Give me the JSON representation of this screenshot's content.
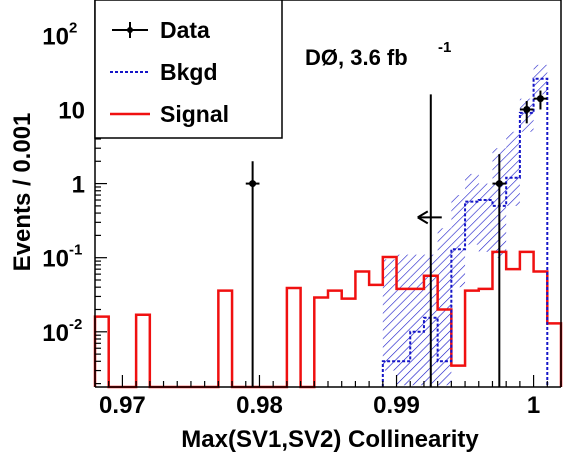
{
  "chart_data": {
    "type": "histogram",
    "xlabel": "Max(SV1,SV2) Collinearity",
    "ylabel": "Events / 0.001",
    "xlim": [
      0.968,
      1.002
    ],
    "ylim": [
      0.0018,
      300
    ],
    "y_scale": "log",
    "bin_width": 0.001,
    "x_ticks": [
      {
        "value": 0.97,
        "label": "0.97"
      },
      {
        "value": 0.98,
        "label": "0.98"
      },
      {
        "value": 0.99,
        "label": "0.99"
      },
      {
        "value": 1.0,
        "label": "1"
      }
    ],
    "y_ticks": [
      {
        "value": 0.01,
        "base": "10",
        "exp": "-2"
      },
      {
        "value": 0.1,
        "base": "10",
        "exp": "-1"
      },
      {
        "value": 1,
        "base": "1",
        "exp": ""
      },
      {
        "value": 10,
        "base": "10",
        "exp": ""
      },
      {
        "value": 100,
        "base": "10",
        "exp": "2"
      }
    ],
    "annotation": {
      "main": "DØ, 3.6 fb",
      "sup": "-1"
    },
    "cut_value": 0.9933,
    "legend": {
      "placement": "top-left",
      "entries": [
        {
          "label": "Data",
          "key": "data"
        },
        {
          "label": "Bkgd",
          "key": "bkgd"
        },
        {
          "label": "Signal",
          "key": "signal"
        }
      ]
    },
    "colors": {
      "data": "#000000",
      "bkgd": "#1515c8",
      "signal": "#f01010",
      "hatch": "#1515c8"
    },
    "signal": [
      {
        "x": 0.968,
        "y": 0.016
      },
      {
        "x": 0.969,
        "y": 0.0001
      },
      {
        "x": 0.97,
        "y": 0.0001
      },
      {
        "x": 0.971,
        "y": 0.017
      },
      {
        "x": 0.972,
        "y": 0.0001
      },
      {
        "x": 0.973,
        "y": 0.0001
      },
      {
        "x": 0.974,
        "y": 0.0001
      },
      {
        "x": 0.975,
        "y": 0.0001
      },
      {
        "x": 0.976,
        "y": 0.0001
      },
      {
        "x": 0.977,
        "y": 0.036
      },
      {
        "x": 0.978,
        "y": 0.0001
      },
      {
        "x": 0.979,
        "y": 0.0001
      },
      {
        "x": 0.98,
        "y": 0.0001
      },
      {
        "x": 0.981,
        "y": 0.0001
      },
      {
        "x": 0.982,
        "y": 0.039
      },
      {
        "x": 0.983,
        "y": 0.0001
      },
      {
        "x": 0.984,
        "y": 0.029
      },
      {
        "x": 0.985,
        "y": 0.036
      },
      {
        "x": 0.986,
        "y": 0.028
      },
      {
        "x": 0.987,
        "y": 0.065
      },
      {
        "x": 0.988,
        "y": 0.043
      },
      {
        "x": 0.989,
        "y": 0.102
      },
      {
        "x": 0.99,
        "y": 0.038
      },
      {
        "x": 0.991,
        "y": 0.038
      },
      {
        "x": 0.992,
        "y": 0.057
      },
      {
        "x": 0.993,
        "y": 0.02
      },
      {
        "x": 0.994,
        "y": 0.0035
      },
      {
        "x": 0.995,
        "y": 0.036
      },
      {
        "x": 0.996,
        "y": 0.038
      },
      {
        "x": 0.997,
        "y": 0.12
      },
      {
        "x": 0.998,
        "y": 0.07
      },
      {
        "x": 0.999,
        "y": 0.12
      },
      {
        "x": 1.0,
        "y": 0.065
      },
      {
        "x": 1.001,
        "y": 0.013
      }
    ],
    "bkgd": [
      {
        "x": 0.989,
        "y": 0.004
      },
      {
        "x": 0.99,
        "y": 0.004
      },
      {
        "x": 0.991,
        "y": 0.01
      },
      {
        "x": 0.992,
        "y": 0.0155
      },
      {
        "x": 0.993,
        "y": 0.004
      },
      {
        "x": 0.994,
        "y": 0.13
      },
      {
        "x": 0.995,
        "y": 0.57
      },
      {
        "x": 0.996,
        "y": 0.6
      },
      {
        "x": 0.997,
        "y": 0.5
      },
      {
        "x": 0.998,
        "y": 1.2
      },
      {
        "x": 0.999,
        "y": 9
      },
      {
        "x": 1.0,
        "y": 26
      }
    ],
    "bkgd_band": [
      {
        "x": 0.989,
        "lo": 0.003,
        "hi": 0.095
      },
      {
        "x": 0.99,
        "lo": 0.0019,
        "hi": 0.11
      },
      {
        "x": 0.991,
        "lo": 0.0019,
        "hi": 0.11
      },
      {
        "x": 0.992,
        "lo": 0.0019,
        "hi": 0.11
      },
      {
        "x": 0.993,
        "lo": 0.0019,
        "hi": 0.25
      },
      {
        "x": 0.994,
        "lo": 0.04,
        "hi": 0.7
      },
      {
        "x": 0.995,
        "lo": 0.15,
        "hi": 1.35
      },
      {
        "x": 0.996,
        "lo": 0.12,
        "hi": 1.0
      },
      {
        "x": 0.997,
        "lo": 0.1,
        "hi": 3.0
      },
      {
        "x": 0.998,
        "lo": 0.5,
        "hi": 5.0
      },
      {
        "x": 0.999,
        "lo": 5.0,
        "hi": 14
      },
      {
        "x": 1.0,
        "lo": 16,
        "hi": 40
      }
    ],
    "data_points": [
      {
        "x": 0.9795,
        "y": 1,
        "err_lo": 0.0018,
        "err_hi": 2.0
      },
      {
        "x": 0.9925,
        "y": 0.0018,
        "err_lo": 0.0018,
        "err_hi": 16
      },
      {
        "x": 0.9975,
        "y": 1,
        "err_lo": 0.0018,
        "err_hi": 2.5
      },
      {
        "x": 0.9995,
        "y": 10,
        "err_lo": 6.5,
        "err_hi": 13
      },
      {
        "x": 1.0005,
        "y": 14,
        "err_lo": 10,
        "err_hi": 18
      }
    ]
  }
}
